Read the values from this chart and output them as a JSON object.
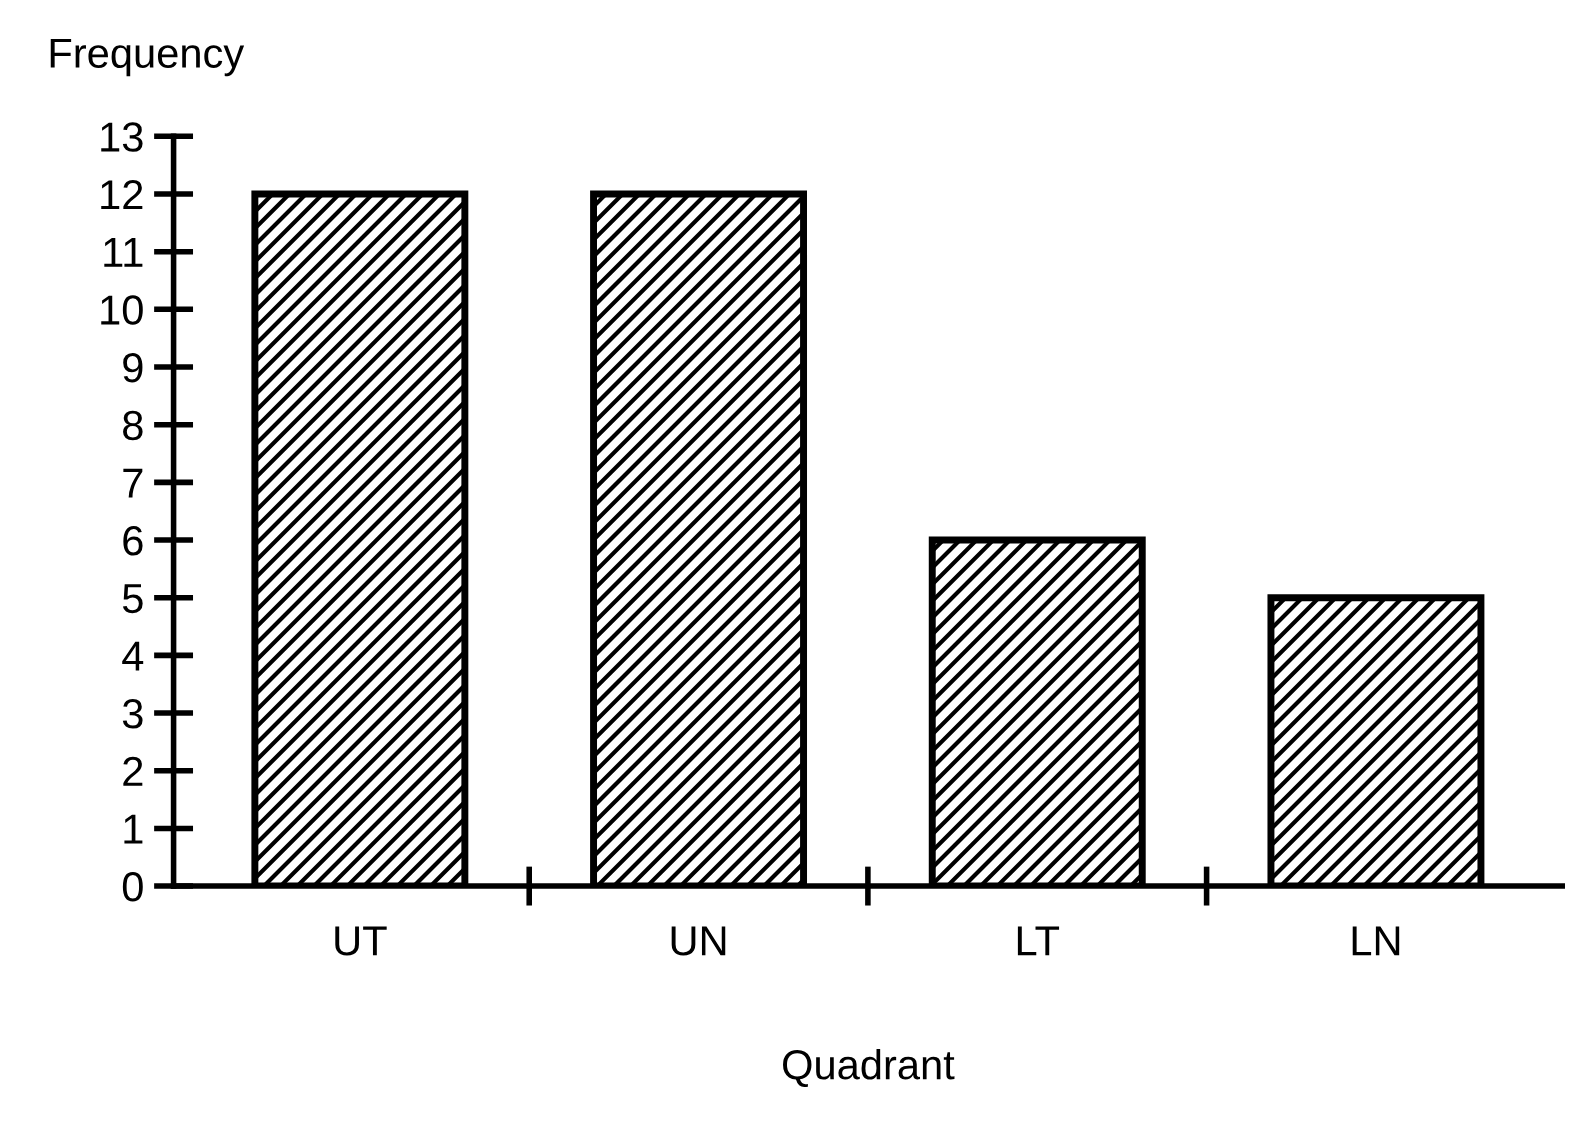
{
  "chart_data": {
    "type": "bar",
    "xlabel": "Quadrant",
    "ylabel": "Frequency",
    "categories": [
      "UT",
      "UN",
      "LT",
      "LN"
    ],
    "values": [
      12,
      12,
      6,
      5
    ],
    "color": "#000000",
    "ylim": [
      0,
      13
    ],
    "yticks": [
      0,
      1,
      2,
      3,
      4,
      5,
      6,
      7,
      8,
      9,
      10,
      11,
      12,
      13
    ],
    "grid": false,
    "legend": false
  }
}
